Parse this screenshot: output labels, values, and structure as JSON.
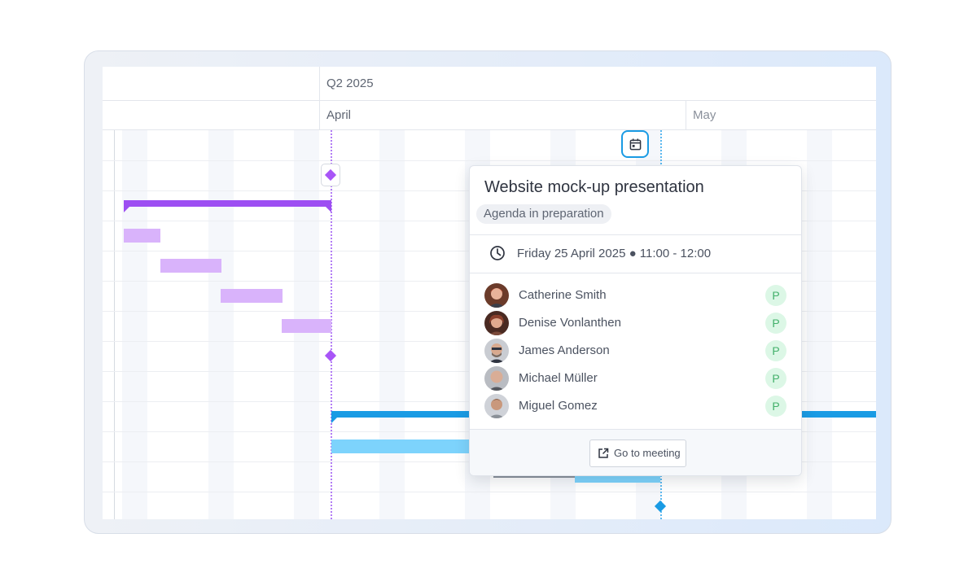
{
  "timeline": {
    "quarter_label": "Q2 2025",
    "months": [
      {
        "label": "April"
      },
      {
        "label": "May"
      }
    ]
  },
  "colors": {
    "purple_summary": "#9d4ef2",
    "purple_task": "#d9b3fb",
    "purple_milestone": "#a855f7",
    "blue_summary": "#1a9be4",
    "blue_task": "#7dd3fc",
    "blue_milestone": "#1a9be4",
    "participant_badge_bg": "#dcf7e6",
    "participant_badge_fg": "#43b06b"
  },
  "meeting_popup": {
    "title": "Website mock-up presentation",
    "status": "Agenda in preparation",
    "date_time": "Friday 25 April 2025 ● 11:00 - 12:00",
    "attendees": [
      {
        "name": "Catherine Smith",
        "role": "P",
        "avatar": "avatar-catherine"
      },
      {
        "name": "Denise Vonlanthen",
        "role": "P",
        "avatar": "avatar-denise"
      },
      {
        "name": "James Anderson",
        "role": "P",
        "avatar": "avatar-james"
      },
      {
        "name": "Michael Müller",
        "role": "P",
        "avatar": "avatar-michael"
      },
      {
        "name": "Miguel Gomez",
        "role": "P",
        "avatar": "avatar-miguel"
      }
    ],
    "go_to_meeting_label": "Go to meeting"
  },
  "icons": {
    "calendar": "calendar-icon",
    "clock": "clock-icon",
    "external_link": "external-link-icon"
  }
}
